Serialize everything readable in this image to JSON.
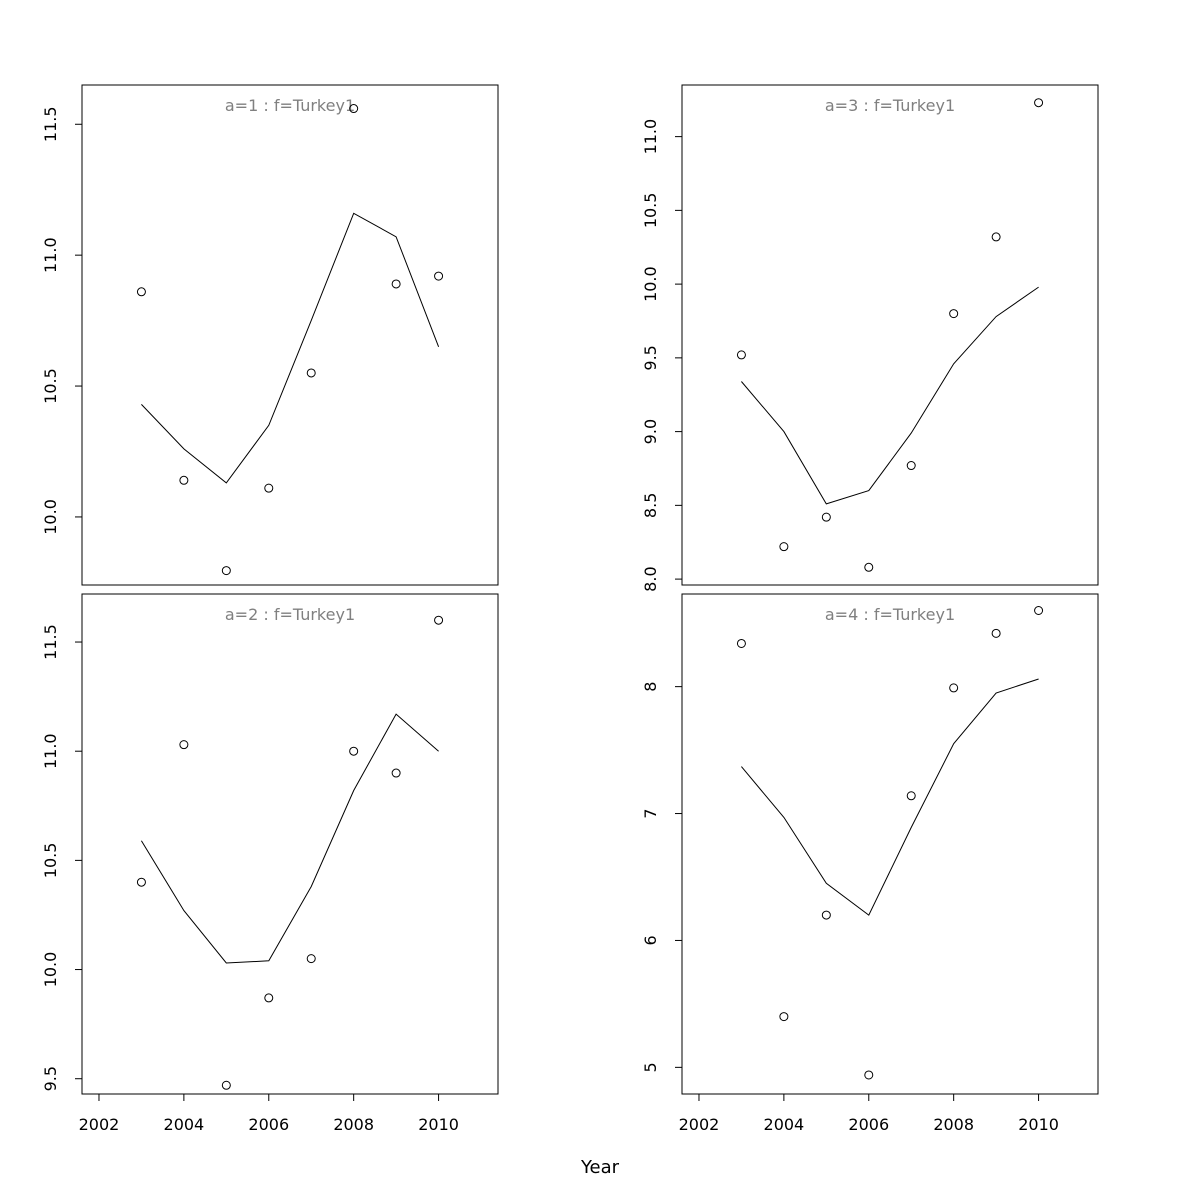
{
  "chart_data": {
    "type": "scatter",
    "xlabel": "Year",
    "ylabel": "",
    "panels": [
      {
        "title": "a=1  :  f=Turkey1",
        "xlim": [
          2001.6,
          2011.4
        ],
        "ylim": [
          9.74,
          11.65
        ],
        "yticks": [
          10.0,
          10.5,
          11.0,
          11.5
        ],
        "ytick_labels": [
          "10.0",
          "10.5",
          "11.0",
          "11.5"
        ],
        "xticks": [],
        "xtick_labels": [],
        "x": [
          2003,
          2004,
          2005,
          2006,
          2007,
          2008,
          2009,
          2010
        ],
        "observed": [
          10.86,
          10.14,
          9.795,
          10.11,
          10.55,
          11.56,
          10.89,
          10.92
        ],
        "fitted": [
          10.43,
          10.26,
          10.13,
          10.35,
          10.75,
          11.16,
          11.07,
          10.65
        ]
      },
      {
        "title": "a=3  :  f=Turkey1",
        "xlim": [
          2001.6,
          2011.4
        ],
        "ylim": [
          7.96,
          11.35
        ],
        "yticks": [
          8.0,
          8.5,
          9.0,
          9.5,
          10.0,
          10.5,
          11.0
        ],
        "ytick_labels": [
          "8.0",
          "8.5",
          "9.0",
          "9.5",
          "10.0",
          "10.5",
          "11.0"
        ],
        "xticks": [],
        "xtick_labels": [],
        "x": [
          2003,
          2004,
          2005,
          2006,
          2007,
          2008,
          2009,
          2010
        ],
        "observed": [
          9.52,
          8.22,
          8.42,
          8.08,
          8.77,
          9.8,
          10.32,
          11.23
        ],
        "fitted": [
          9.34,
          9.0,
          8.51,
          8.6,
          8.99,
          9.46,
          9.78,
          9.98
        ]
      },
      {
        "title": "a=2  :  f=Turkey1",
        "xlim": [
          2001.6,
          2011.4
        ],
        "ylim": [
          9.43,
          11.72
        ],
        "yticks": [
          9.5,
          10.0,
          10.5,
          11.0,
          11.5
        ],
        "ytick_labels": [
          "9.5",
          "10.0",
          "10.5",
          "11.0",
          "11.5"
        ],
        "xticks": [
          2002,
          2004,
          2006,
          2008,
          2010
        ],
        "xtick_labels": [
          "2002",
          "2004",
          "2006",
          "2008",
          "2010"
        ],
        "x": [
          2003,
          2004,
          2005,
          2006,
          2007,
          2008,
          2009,
          2010
        ],
        "observed": [
          10.4,
          11.03,
          9.47,
          9.87,
          10.05,
          11.0,
          10.9,
          11.6
        ],
        "fitted": [
          10.59,
          10.27,
          10.03,
          10.04,
          10.38,
          10.82,
          11.17,
          11.0
        ]
      },
      {
        "title": "a=4  :  f=Turkey1",
        "xlim": [
          2001.6,
          2011.4
        ],
        "ylim": [
          4.79,
          8.73
        ],
        "yticks": [
          5,
          6,
          7,
          8
        ],
        "ytick_labels": [
          "5",
          "6",
          "7",
          "8"
        ],
        "xticks": [
          2002,
          2004,
          2006,
          2008,
          2010
        ],
        "xtick_labels": [
          "2002",
          "2004",
          "2006",
          "2008",
          "2010"
        ],
        "x": [
          2003,
          2004,
          2005,
          2006,
          2007,
          2008,
          2009,
          2010
        ],
        "observed": [
          8.34,
          5.4,
          6.2,
          4.94,
          7.14,
          7.99,
          8.42,
          8.6
        ],
        "fitted": [
          7.37,
          6.97,
          6.45,
          6.2,
          6.89,
          7.55,
          7.95,
          8.06
        ]
      }
    ]
  }
}
